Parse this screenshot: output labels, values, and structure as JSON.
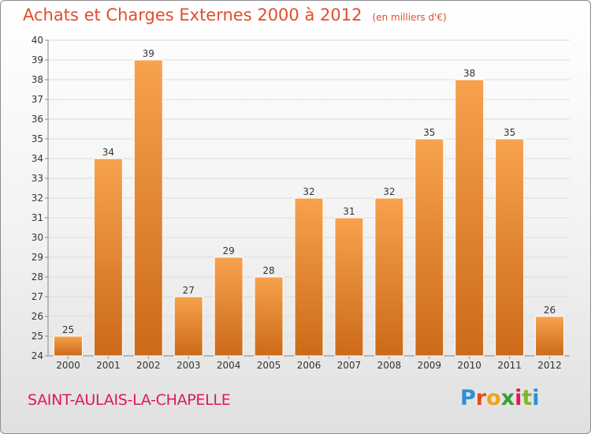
{
  "header": {
    "title": "Achats et Charges Externes 2000 à 2012",
    "subtitle": "(en milliers d'€)"
  },
  "footer": {
    "commune": "SAINT-AULAIS-LA-CHAPELLE",
    "logo_text": "Proxiti"
  },
  "colors": {
    "bar_top": "#f7a24e",
    "bar_bottom": "#cc6a18",
    "title": "#e14e2c",
    "commune": "#e0194f"
  },
  "chart_data": {
    "type": "bar",
    "title": "Achats et Charges Externes 2000 à 2012",
    "subtitle": "(en milliers d'€)",
    "xlabel": "",
    "ylabel": "",
    "categories": [
      "2000",
      "2001",
      "2002",
      "2003",
      "2004",
      "2005",
      "2006",
      "2007",
      "2008",
      "2009",
      "2010",
      "2011",
      "2012"
    ],
    "values": [
      25,
      34,
      39,
      27,
      29,
      28,
      32,
      31,
      32,
      35,
      38,
      35,
      26
    ],
    "ylim": [
      24,
      40
    ],
    "yticks": [
      24,
      25,
      26,
      27,
      28,
      29,
      30,
      31,
      32,
      33,
      34,
      35,
      36,
      37,
      38,
      39,
      40
    ],
    "grid": true
  }
}
